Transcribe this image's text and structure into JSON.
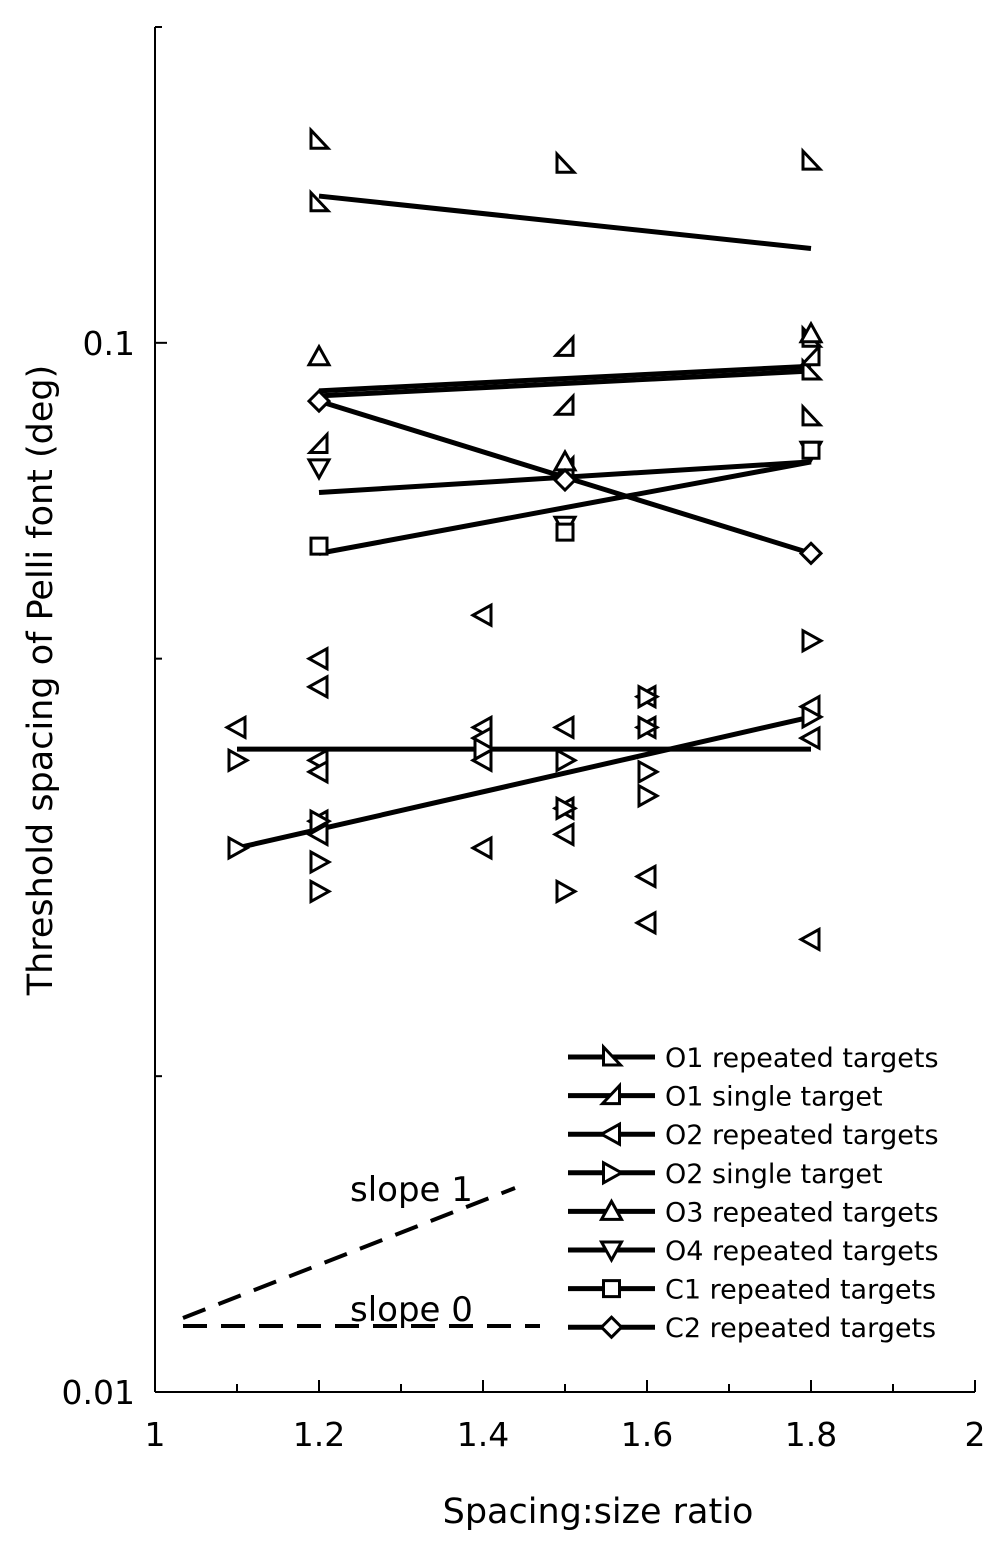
{
  "chart_data": {
    "type": "scatter",
    "title": "",
    "xlabel": "Spacing:size ratio",
    "ylabel": "Threshold spacing of Pelli font (deg)",
    "xlim": [
      1,
      2
    ],
    "ylim": [
      0.01,
      0.2
    ],
    "yscale": "log",
    "grid": false,
    "legend_position": "bottom-right",
    "x_ticks": [
      1,
      1.2,
      1.4,
      1.6,
      1.8,
      2
    ],
    "x_tick_labels": [
      "1",
      "1.2",
      "1.4",
      "1.6",
      "1.8",
      "2"
    ],
    "y_tick_labels": [
      {
        "value": 0.01,
        "label": "0.01"
      },
      {
        "value": 0.1,
        "label": "0.1"
      }
    ],
    "series": [
      {
        "name": "O1 repeated targets",
        "marker": "triangle-corner-a",
        "points": [
          [
            1.2,
            0.156
          ],
          [
            1.2,
            0.136
          ],
          [
            1.5,
            0.148
          ],
          [
            1.8,
            0.149
          ],
          [
            1.8,
            0.101
          ],
          [
            1.8,
            0.094
          ],
          [
            1.8,
            0.085
          ]
        ],
        "fit": [
          [
            1.2,
            0.138
          ],
          [
            1.8,
            0.123
          ]
        ]
      },
      {
        "name": "O1 single target",
        "marker": "triangle-corner-b",
        "points": [
          [
            1.2,
            0.08
          ],
          [
            1.5,
            0.087
          ],
          [
            1.5,
            0.099
          ],
          [
            1.5,
            0.076
          ],
          [
            1.8,
            0.097
          ]
        ],
        "fit": [
          [
            1.2,
            0.089
          ],
          [
            1.8,
            0.094
          ]
        ]
      },
      {
        "name": "O2 repeated targets",
        "marker": "triangle-left",
        "points": [
          [
            1.1,
            0.043
          ],
          [
            1.2,
            0.05
          ],
          [
            1.2,
            0.047
          ],
          [
            1.2,
            0.04
          ],
          [
            1.2,
            0.039
          ],
          [
            1.2,
            0.035
          ],
          [
            1.2,
            0.034
          ],
          [
            1.4,
            0.055
          ],
          [
            1.4,
            0.043
          ],
          [
            1.4,
            0.042
          ],
          [
            1.4,
            0.04
          ],
          [
            1.4,
            0.033
          ],
          [
            1.5,
            0.043
          ],
          [
            1.5,
            0.036
          ],
          [
            1.5,
            0.034
          ],
          [
            1.6,
            0.046
          ],
          [
            1.6,
            0.043
          ],
          [
            1.6,
            0.031
          ],
          [
            1.6,
            0.028
          ],
          [
            1.8,
            0.027
          ],
          [
            1.8,
            0.042
          ],
          [
            1.8,
            0.045
          ]
        ],
        "fit": null
      },
      {
        "name": "O2 single target",
        "marker": "triangle-right",
        "points": [
          [
            1.1,
            0.04
          ],
          [
            1.1,
            0.033
          ],
          [
            1.2,
            0.035
          ],
          [
            1.2,
            0.032
          ],
          [
            1.2,
            0.03
          ],
          [
            1.4,
            0.041
          ],
          [
            1.5,
            0.04
          ],
          [
            1.5,
            0.03
          ],
          [
            1.5,
            0.036
          ],
          [
            1.6,
            0.039
          ],
          [
            1.6,
            0.037
          ],
          [
            1.6,
            0.046
          ],
          [
            1.6,
            0.043
          ],
          [
            1.8,
            0.052
          ],
          [
            1.8,
            0.044
          ]
        ],
        "fit": [
          [
            1.1,
            0.033
          ],
          [
            1.8,
            0.044
          ]
        ]
      },
      {
        "name": "O3 repeated targets",
        "marker": "triangle-up",
        "points": [
          [
            1.2,
            0.097
          ],
          [
            1.5,
            0.077
          ],
          [
            1.8,
            0.102
          ]
        ],
        "fit": [
          [
            1.2,
            0.09
          ],
          [
            1.8,
            0.095
          ]
        ]
      },
      {
        "name": "O4 repeated targets",
        "marker": "triangle-down",
        "points": [
          [
            1.2,
            0.076
          ],
          [
            1.5,
            0.067
          ],
          [
            1.8,
            0.079
          ]
        ],
        "fit": [
          [
            1.2,
            0.072
          ],
          [
            1.8,
            0.077
          ]
        ]
      },
      {
        "name": "C1 repeated targets",
        "marker": "square",
        "points": [
          [
            1.2,
            0.064
          ],
          [
            1.5,
            0.066
          ],
          [
            1.8,
            0.079
          ]
        ],
        "fit": [
          [
            1.2,
            0.063
          ],
          [
            1.8,
            0.077
          ]
        ]
      },
      {
        "name": "C2 repeated targets",
        "marker": "diamond",
        "points": [
          [
            1.2,
            0.088
          ],
          [
            1.5,
            0.074
          ],
          [
            1.8,
            0.063
          ]
        ],
        "fit": [
          [
            1.2,
            0.088
          ],
          [
            1.8,
            0.063
          ]
        ]
      }
    ],
    "horizontal_fit": {
      "x": [
        1.1,
        1.8
      ],
      "y": 0.041
    },
    "annotations": [
      {
        "text": "slope 1"
      },
      {
        "text": "slope 0"
      }
    ]
  }
}
